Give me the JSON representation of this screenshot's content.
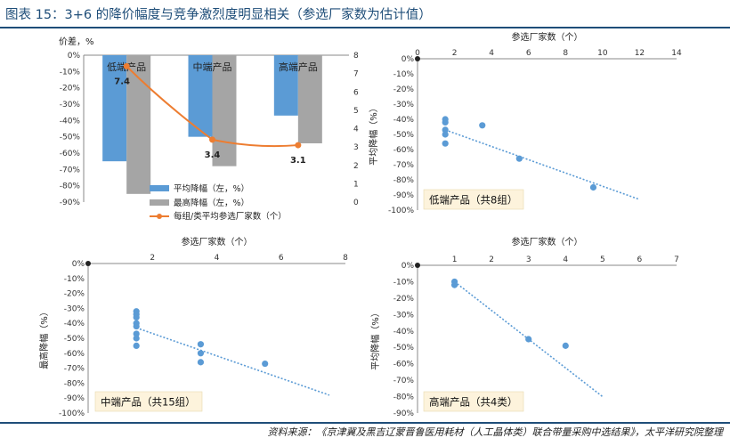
{
  "header": {
    "title": "图表 15：3+6 的降价幅度与竞争激烈度明显相关（参选厂家数为估计值）"
  },
  "footer": {
    "source": "资料来源：《京津冀及黑吉辽蒙晋鲁医用耗材（人工晶体类）联合带量采购中选结果》，太平洋研究院整理"
  },
  "colors": {
    "title_blue": "#1f4e79",
    "bar_avg": "#5b9bd5",
    "bar_max": "#a5a5a5",
    "line_orange": "#ed7d31",
    "scatter_blue": "#5b9bd5",
    "label_box_fill": "#fdf3dc"
  },
  "chart_data": [
    {
      "type": "bar",
      "ylabel": "价差，%",
      "y_ticks": [
        "0%",
        "-10%",
        "-20%",
        "-30%",
        "-40%",
        "-50%",
        "-60%",
        "-70%",
        "-80%",
        "-90%"
      ],
      "ylim": [
        -90,
        0
      ],
      "y2_ticks": [
        "8",
        "7",
        "6",
        "5",
        "4",
        "3",
        "2",
        "1",
        "0"
      ],
      "y2lim": [
        0,
        8
      ],
      "categories": [
        "低端产品",
        "中端产品",
        "高端产品"
      ],
      "series": [
        {
          "name": "平均降幅（左，%）",
          "kind": "bar",
          "values": [
            -65,
            -50,
            -37
          ]
        },
        {
          "name": "最高降幅（左，%）",
          "kind": "bar",
          "values": [
            -85,
            -68,
            -54
          ]
        },
        {
          "name": "每组/类平均参选厂家数（个）",
          "kind": "line",
          "axis": "right",
          "values": [
            7.4,
            3.4,
            3.1
          ],
          "labels": [
            "7.4",
            "3.4",
            "3.1"
          ]
        }
      ],
      "legend": "bottom-center"
    },
    {
      "type": "scatter",
      "xlabel": "参选厂家数（个）",
      "ylabel": "平均降幅（%）",
      "x_ticks": [
        "0",
        "2",
        "4",
        "6",
        "8",
        "10",
        "12",
        "14"
      ],
      "xlim": [
        0,
        14
      ],
      "y_ticks": [
        "0%",
        "-10%",
        "-20%",
        "-30%",
        "-40%",
        "-50%",
        "-60%",
        "-70%",
        "-80%",
        "-90%",
        "-100%"
      ],
      "ylim": [
        -100,
        0
      ],
      "points": [
        [
          1.5,
          -40
        ],
        [
          1.5,
          -42
        ],
        [
          1.5,
          -47
        ],
        [
          1.5,
          -50
        ],
        [
          1.5,
          -56
        ],
        [
          3.5,
          -44
        ],
        [
          5.5,
          -66
        ],
        [
          9.5,
          -85
        ]
      ],
      "trendline": [
        [
          1.5,
          -47
        ],
        [
          12,
          -93
        ]
      ],
      "annotation": "低端产品（共8组）"
    },
    {
      "type": "scatter",
      "xlabel": "参选厂家数（个）",
      "ylabel": "最高降幅（%）",
      "x_ticks": [
        "2",
        "4",
        "6",
        "8"
      ],
      "xlim": [
        0,
        8
      ],
      "y_ticks": [
        "0%",
        "-10%",
        "-20%",
        "-30%",
        "-40%",
        "-50%",
        "-60%",
        "-70%",
        "-80%",
        "-90%",
        "-100%"
      ],
      "ylim": [
        -100,
        0
      ],
      "points": [
        [
          1.5,
          -32
        ],
        [
          1.5,
          -34
        ],
        [
          1.5,
          -36
        ],
        [
          1.5,
          -40
        ],
        [
          1.5,
          -42
        ],
        [
          1.5,
          -47
        ],
        [
          1.5,
          -50
        ],
        [
          1.5,
          -55
        ],
        [
          3.5,
          -54
        ],
        [
          3.5,
          -60
        ],
        [
          3.5,
          -66
        ],
        [
          5.5,
          -67
        ]
      ],
      "trendline": [
        [
          1.5,
          -43
        ],
        [
          7.5,
          -88
        ]
      ],
      "annotation": "中端产品（共15组）"
    },
    {
      "type": "scatter",
      "xlabel": "参选厂家数（个）",
      "ylabel": "平均降幅（%）",
      "x_ticks": [
        "1",
        "2",
        "3",
        "4",
        "5",
        "6",
        "7"
      ],
      "xlim": [
        0,
        7
      ],
      "y_ticks": [
        "0%",
        "-10%",
        "-20%",
        "-30%",
        "-40%",
        "-50%",
        "-60%",
        "-70%",
        "-80%",
        "-90%"
      ],
      "ylim": [
        -90,
        0
      ],
      "points": [
        [
          1,
          -10
        ],
        [
          1,
          -12
        ],
        [
          3,
          -45
        ],
        [
          4,
          -49
        ]
      ],
      "trendline": [
        [
          1,
          -10
        ],
        [
          5,
          -80
        ]
      ],
      "annotation": "高端产品（共4类）"
    }
  ]
}
